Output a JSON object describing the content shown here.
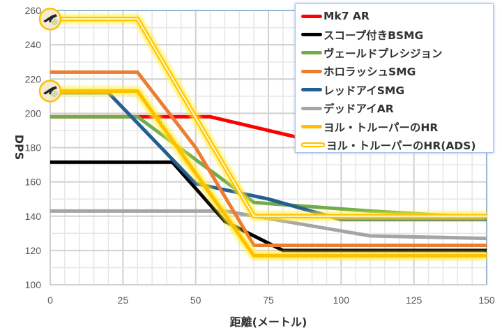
{
  "chart_data": {
    "type": "line",
    "title": "",
    "xlabel": "距離(メートル)",
    "ylabel": "DPS",
    "xlim": [
      0,
      150
    ],
    "ylim": [
      100,
      260
    ],
    "xticks": [
      0,
      25,
      50,
      75,
      100,
      125,
      150
    ],
    "yticks": [
      100,
      120,
      140,
      160,
      180,
      200,
      220,
      240,
      260
    ],
    "grid": true,
    "legend_position": "top-right",
    "series": [
      {
        "name": "Mk7 AR",
        "color": "#ff0000",
        "points": [
          [
            0,
            198
          ],
          [
            55,
            198
          ],
          [
            100,
            180
          ],
          [
            150,
            180
          ]
        ]
      },
      {
        "name": "スコープ付きBSMG",
        "color": "#000000",
        "points": [
          [
            0,
            171.5
          ],
          [
            42,
            171.5
          ],
          [
            60,
            137
          ],
          [
            80,
            120
          ],
          [
            150,
            120
          ]
        ]
      },
      {
        "name": "ヴェールドプレシジョン",
        "color": "#70ad47",
        "points": [
          [
            0,
            198
          ],
          [
            30,
            198
          ],
          [
            70,
            148
          ],
          [
            110,
            143
          ],
          [
            150,
            139
          ]
        ]
      },
      {
        "name": "ホロラッシュSMG",
        "color": "#ed7d31",
        "points": [
          [
            0,
            224
          ],
          [
            30,
            224
          ],
          [
            50,
            180
          ],
          [
            70,
            123
          ],
          [
            150,
            123
          ]
        ]
      },
      {
        "name": "レッドアイSMG",
        "color": "#255e91",
        "points": [
          [
            0,
            212
          ],
          [
            20,
            212
          ],
          [
            50,
            159
          ],
          [
            75,
            150
          ],
          [
            100,
            138
          ],
          [
            150,
            138
          ]
        ]
      },
      {
        "name": "デッドアイAR",
        "color": "#a5a5a5",
        "points": [
          [
            0,
            143
          ],
          [
            60,
            143
          ],
          [
            110,
            128.5
          ],
          [
            150,
            127
          ]
        ]
      },
      {
        "name": "ヨル・トルーパーのHR",
        "color": "#ffc000",
        "points": [
          [
            0,
            213
          ],
          [
            30,
            213
          ],
          [
            70,
            117
          ],
          [
            150,
            117
          ]
        ]
      },
      {
        "name": "ヨル・トルーパーのHR(ADS)",
        "color": "#ffc000",
        "hollow": true,
        "points": [
          [
            0,
            255
          ],
          [
            30,
            255
          ],
          [
            70,
            140
          ],
          [
            150,
            140
          ]
        ]
      }
    ]
  }
}
